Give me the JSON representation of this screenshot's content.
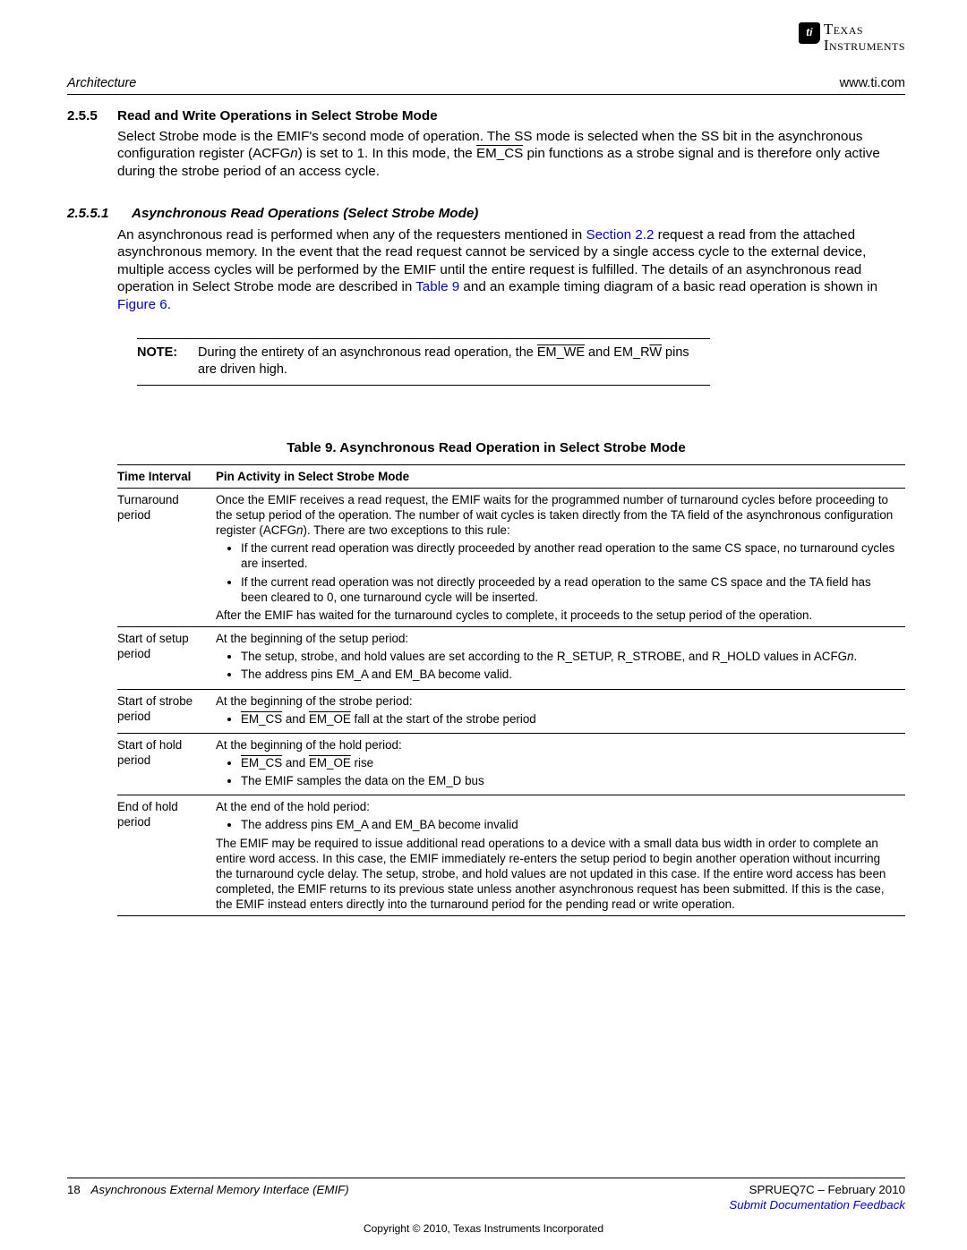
{
  "logo": {
    "chip": "ti",
    "line1": "Texas",
    "line2": "Instruments"
  },
  "header": {
    "left": "Architecture",
    "right": "www.ti.com"
  },
  "section": {
    "num": "2.5.5",
    "title": "Read and Write Operations in Select Strobe Mode"
  },
  "para1a": "Select Strobe mode is the EMIF's second mode of operation. The SS mode is selected when the SS bit in the asynchronous configuration register (ACFG",
  "para1b_italic": "n",
  "para1c": ") is set to 1. In this mode, the ",
  "para1d_ovl": "EM_CS",
  "para1e": " pin functions as a strobe signal and is therefore only active during the strobe period of an access cycle.",
  "subsection": {
    "num": "2.5.5.1",
    "title": "Asynchronous Read Operations (Select Strobe Mode)"
  },
  "para2a": "An asynchronous read is performed when any of the requesters mentioned in ",
  "para2_link1": "Section 2.2",
  "para2b": " request a read from the attached asynchronous memory. In the event that the read request cannot be serviced by a single access cycle to the external device, multiple access cycles will be performed by the EMIF until the entire request is fulfilled. The details of an asynchronous read operation in Select Strobe mode are described in ",
  "para2_link2": "Table 9",
  "para2c": " and an example timing diagram of a basic read operation is shown in ",
  "para2_link3": "Figure 6",
  "para2d": ".",
  "note": {
    "label": "NOTE:",
    "a": "During the entirety of an asynchronous read operation, the ",
    "ovl1": "EM_WE",
    "b": " and EM_R",
    "ovl2": "W",
    "c": " pins are driven high."
  },
  "table": {
    "caption": "Table 9. Asynchronous Read Operation in Select Strobe Mode",
    "head": {
      "c1": "Time Interval",
      "c2": "Pin Activity in Select Strobe Mode"
    },
    "rows": [
      {
        "c1": "Turnaround period",
        "lead_a": "Once the EMIF receives a read request, the EMIF waits for the programmed number of turnaround cycles before proceeding to the setup period of the operation. The number of wait cycles is taken directly from the TA field of the asynchronous configuration register (ACFG",
        "lead_italic": "n",
        "lead_b": "). There are two exceptions to this rule:",
        "bullets": [
          {
            "text": "If the current read operation was directly proceeded by another read operation to the same CS space, no turnaround cycles are inserted."
          },
          {
            "text": "If the current read operation was not directly proceeded by a read operation to the same CS space and the TA field has been cleared to 0, one turnaround cycle will be inserted."
          }
        ],
        "trail": "After the EMIF has waited for the turnaround cycles to complete, it proceeds to the setup period of the operation."
      },
      {
        "c1": "Start of setup period",
        "lead": "At the beginning of the setup period:",
        "bullets": [
          {
            "pre": "The setup, strobe, and hold values are set according to the R_SETUP, R_STROBE, and R_HOLD values in ACFG",
            "italic": "n",
            "post": "."
          },
          {
            "text": "The address pins EM_A and EM_BA become valid."
          }
        ]
      },
      {
        "c1": "Start of strobe period",
        "lead": "At the beginning of the strobe period:",
        "bullets": [
          {
            "ovl_items": true,
            "o1": "EM_CS",
            "mid": " and ",
            "o2": "EM_OE",
            "post": " fall at the start of the strobe period"
          }
        ]
      },
      {
        "c1": "Start of hold period",
        "lead": "At the beginning of the hold period:",
        "bullets": [
          {
            "ovl_items": true,
            "o1": "EM_CS",
            "mid": " and ",
            "o2": "EM_OE",
            "post": " rise"
          },
          {
            "text": "The EMIF samples the data on the EM_D bus"
          }
        ]
      },
      {
        "c1": "End of hold period",
        "lead": "At the end of the hold period:",
        "bullets": [
          {
            "text": "The address pins EM_A and EM_BA become invalid"
          }
        ],
        "trail": "The EMIF may be required to issue additional read operations to a device with a small data bus width in order to complete an entire word access. In this case, the EMIF immediately re-enters the setup period to begin another operation without incurring the turnaround cycle delay. The setup, strobe, and hold values are not updated in this case. If the entire word access has been completed, the EMIF returns to its previous state unless another asynchronous request has been submitted. If this is the case, the EMIF instead enters directly into the turnaround period for the pending read or write operation."
      }
    ]
  },
  "footer": {
    "page": "18",
    "title": "Asynchronous External Memory Interface (EMIF)",
    "rev": "SPRUEQ7C – February 2010",
    "feedback": "Submit Documentation Feedback",
    "copyright": "Copyright © 2010, Texas Instruments Incorporated"
  },
  "colors": {
    "link": "#0000cc",
    "text": "#000000",
    "bg": "#ffffff"
  }
}
